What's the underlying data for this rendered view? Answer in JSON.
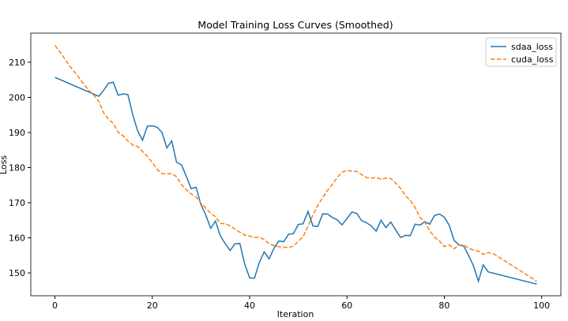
{
  "chart_data": {
    "type": "line",
    "title": "Model Training Loss Curves (Smoothed)",
    "xlabel": "Iteration",
    "ylabel": "Loss",
    "xlim": [
      -4.95,
      103.95
    ],
    "ylim": [
      143.5,
      218.3
    ],
    "xticks": [
      0,
      20,
      40,
      60,
      80,
      100
    ],
    "yticks": [
      150,
      160,
      170,
      180,
      190,
      200,
      210
    ],
    "legend": "upper right",
    "series": [
      {
        "name": "sdaa_loss",
        "color": "#1f77b4",
        "dash": "solid",
        "x": [
          0,
          9,
          10,
          11,
          12,
          13,
          14,
          15,
          16,
          17,
          18,
          19,
          20,
          21,
          22,
          23,
          24,
          25,
          26,
          27,
          28,
          29,
          30,
          31,
          32,
          33,
          34,
          35,
          36,
          37,
          38,
          39,
          40,
          41,
          42,
          43,
          44,
          45,
          46,
          47,
          48,
          49,
          50,
          51,
          52,
          53,
          54,
          55,
          56,
          57,
          58,
          59,
          60,
          61,
          62,
          63,
          64,
          65,
          66,
          67,
          68,
          69,
          70,
          71,
          72,
          73,
          74,
          75,
          76,
          77,
          78,
          79,
          80,
          81,
          82,
          83,
          84,
          85,
          86,
          87,
          88,
          89,
          99
        ],
        "values": [
          205.7,
          200.3,
          202,
          204,
          204.3,
          200.6,
          201,
          200.8,
          195,
          190.5,
          187.8,
          191.8,
          191.9,
          191.5,
          190,
          185.6,
          187.6,
          181.5,
          180.8,
          177.5,
          174,
          174.4,
          169.5,
          166.5,
          162.7,
          164.8,
          160.5,
          158.3,
          156.4,
          158.3,
          158.4,
          152.5,
          148.6,
          148.5,
          153,
          156,
          154,
          157,
          159.1,
          158.9,
          161,
          161.2,
          163.8,
          164,
          167.5,
          163.4,
          163.2,
          166.8,
          166.8,
          165.8,
          165.1,
          163.7,
          165.5,
          167.3,
          167,
          164.9,
          164.3,
          163.4,
          161.9,
          165,
          162.9,
          164.5,
          162.3,
          160.1,
          160.7,
          160.6,
          163.9,
          163.6,
          164.6,
          163.9,
          166.4,
          166.8,
          165.9,
          163.6,
          159.3,
          158,
          157.6,
          155,
          152,
          147.6,
          152.3,
          150.3,
          146.8
        ]
      },
      {
        "name": "cuda_loss",
        "color": "#ff7f0e",
        "dash": "dashed",
        "x": [
          0,
          1,
          2,
          3,
          4,
          5,
          6,
          7,
          8,
          9,
          10,
          11,
          12,
          13,
          14,
          15,
          16,
          17,
          18,
          19,
          20,
          21,
          22,
          23,
          24,
          25,
          26,
          27,
          28,
          29,
          30,
          31,
          32,
          33,
          34,
          35,
          36,
          37,
          38,
          39,
          40,
          41,
          42,
          43,
          44,
          45,
          46,
          47,
          48,
          49,
          50,
          51,
          52,
          53,
          54,
          55,
          56,
          57,
          58,
          59,
          60,
          61,
          62,
          63,
          64,
          65,
          66,
          67,
          68,
          69,
          70,
          71,
          72,
          73,
          74,
          75,
          76,
          77,
          78,
          79,
          80,
          81,
          82,
          83,
          84,
          85,
          86,
          87,
          88,
          89,
          90,
          91,
          99
        ],
        "values": [
          214.8,
          213,
          211,
          209,
          207.3,
          205.5,
          203.6,
          202,
          200.6,
          198.9,
          195.6,
          193.8,
          192.6,
          190,
          189.1,
          187.6,
          186.4,
          186,
          184.6,
          183.2,
          181.5,
          179.5,
          178.3,
          178.2,
          178.3,
          177.4,
          175.2,
          173.7,
          172.5,
          171.6,
          169.9,
          168.4,
          167,
          166,
          164.1,
          164,
          163.4,
          162.5,
          161.6,
          160.8,
          160.5,
          160.1,
          160.2,
          159.5,
          158.3,
          157.8,
          157.5,
          157.3,
          157.3,
          157.6,
          159,
          160.3,
          163.3,
          166.5,
          169.2,
          171.4,
          173.5,
          175.2,
          177.2,
          178.7,
          179.2,
          179,
          178.9,
          178,
          177.2,
          177,
          177.2,
          176.7,
          177,
          176.9,
          175.6,
          174.1,
          172,
          170.7,
          168.6,
          165.8,
          164.5,
          162,
          160.2,
          159.1,
          157.5,
          158,
          156.9,
          157.8,
          158,
          157,
          156.5,
          156.2,
          155.3,
          155.8,
          155.5,
          154.7,
          147.6
        ]
      }
    ]
  }
}
